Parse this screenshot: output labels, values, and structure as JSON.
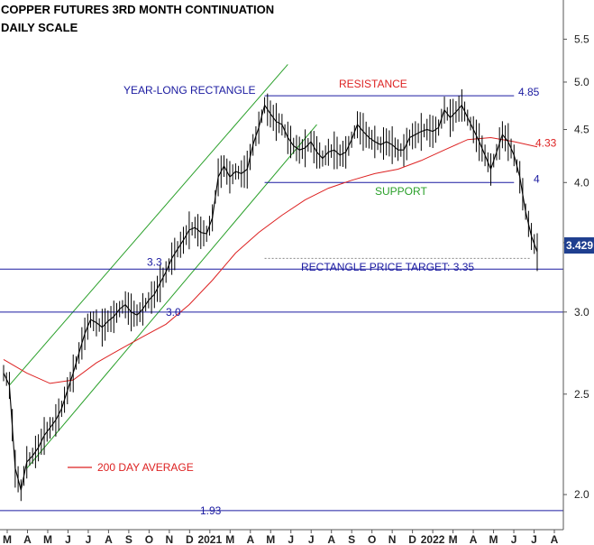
{
  "chart_data": {
    "type": "line",
    "title": "COPPER FUTURES 3RD MONTH CONTINUATION",
    "subtitle": "DAILY SCALE",
    "y_scale": "log",
    "ylim": [
      1.85,
      6.0
    ],
    "y_ticks": [
      {
        "value": 2.0,
        "label": "2.0"
      },
      {
        "value": 2.5,
        "label": "2.5"
      },
      {
        "value": 3.0,
        "label": "3.0"
      },
      {
        "value": 3.5,
        "label": "3.5"
      },
      {
        "value": 4.0,
        "label": "4.0"
      },
      {
        "value": 4.5,
        "label": "4.5"
      },
      {
        "value": 5.0,
        "label": "5.0"
      },
      {
        "value": 5.5,
        "label": "5.5"
      }
    ],
    "x_ticks": [
      "M",
      "A",
      "M",
      "J",
      "J",
      "A",
      "S",
      "O",
      "N",
      "D",
      "2021",
      "M",
      "A",
      "M",
      "J",
      "J",
      "A",
      "S",
      "O",
      "N",
      "D",
      "2022",
      "M",
      "A",
      "M",
      "J",
      "J",
      "A"
    ],
    "last_price": "3.429",
    "series": [
      {
        "name": "Price",
        "color": "#000000",
        "points": [
          [
            0,
            2.62
          ],
          [
            1,
            2.55
          ],
          [
            2,
            2.12
          ],
          [
            3,
            2.02
          ],
          [
            4,
            2.15
          ],
          [
            5,
            2.18
          ],
          [
            6,
            2.22
          ],
          [
            7,
            2.28
          ],
          [
            8,
            2.32
          ],
          [
            9,
            2.36
          ],
          [
            10,
            2.42
          ],
          [
            11,
            2.52
          ],
          [
            12,
            2.62
          ],
          [
            13,
            2.74
          ],
          [
            14,
            2.86
          ],
          [
            15,
            2.95
          ],
          [
            16,
            2.93
          ],
          [
            17,
            2.9
          ],
          [
            18,
            2.94
          ],
          [
            19,
            2.97
          ],
          [
            20,
            3.02
          ],
          [
            21,
            3.05
          ],
          [
            22,
            3.0
          ],
          [
            23,
            2.98
          ],
          [
            24,
            3.02
          ],
          [
            25,
            3.08
          ],
          [
            26,
            3.12
          ],
          [
            27,
            3.2
          ],
          [
            28,
            3.28
          ],
          [
            29,
            3.38
          ],
          [
            30,
            3.45
          ],
          [
            31,
            3.52
          ],
          [
            32,
            3.6
          ],
          [
            33,
            3.62
          ],
          [
            34,
            3.58
          ],
          [
            35,
            3.57
          ],
          [
            36,
            3.7
          ],
          [
            37,
            4.05
          ],
          [
            38,
            4.15
          ],
          [
            39,
            4.05
          ],
          [
            40,
            4.1
          ],
          [
            41,
            4.08
          ],
          [
            42,
            4.12
          ],
          [
            43,
            4.35
          ],
          [
            44,
            4.52
          ],
          [
            45,
            4.75
          ],
          [
            46,
            4.66
          ],
          [
            47,
            4.58
          ],
          [
            48,
            4.55
          ],
          [
            49,
            4.42
          ],
          [
            50,
            4.34
          ],
          [
            51,
            4.3
          ],
          [
            52,
            4.32
          ],
          [
            53,
            4.38
          ],
          [
            54,
            4.28
          ],
          [
            55,
            4.22
          ],
          [
            56,
            4.28
          ],
          [
            57,
            4.3
          ],
          [
            58,
            4.25
          ],
          [
            59,
            4.28
          ],
          [
            60,
            4.4
          ],
          [
            61,
            4.55
          ],
          [
            62,
            4.48
          ],
          [
            63,
            4.42
          ],
          [
            64,
            4.38
          ],
          [
            65,
            4.35
          ],
          [
            66,
            4.38
          ],
          [
            67,
            4.35
          ],
          [
            68,
            4.3
          ],
          [
            69,
            4.3
          ],
          [
            70,
            4.42
          ],
          [
            71,
            4.45
          ],
          [
            72,
            4.48
          ],
          [
            73,
            4.5
          ],
          [
            74,
            4.48
          ],
          [
            75,
            4.52
          ],
          [
            76,
            4.7
          ],
          [
            77,
            4.62
          ],
          [
            78,
            4.68
          ],
          [
            79,
            4.75
          ],
          [
            80,
            4.62
          ],
          [
            81,
            4.5
          ],
          [
            82,
            4.38
          ],
          [
            83,
            4.25
          ],
          [
            84,
            4.12
          ],
          [
            85,
            4.28
          ],
          [
            86,
            4.45
          ],
          [
            87,
            4.38
          ],
          [
            88,
            4.25
          ],
          [
            89,
            4.05
          ],
          [
            90,
            3.75
          ],
          [
            91,
            3.55
          ],
          [
            92,
            3.43
          ]
        ]
      },
      {
        "name": "200 DAY AVERAGE",
        "color": "#dd2222",
        "points": [
          [
            0,
            2.7
          ],
          [
            4,
            2.62
          ],
          [
            8,
            2.56
          ],
          [
            12,
            2.58
          ],
          [
            16,
            2.68
          ],
          [
            20,
            2.76
          ],
          [
            24,
            2.84
          ],
          [
            28,
            2.92
          ],
          [
            32,
            3.05
          ],
          [
            36,
            3.22
          ],
          [
            40,
            3.42
          ],
          [
            44,
            3.58
          ],
          [
            48,
            3.72
          ],
          [
            52,
            3.85
          ],
          [
            56,
            3.95
          ],
          [
            60,
            4.02
          ],
          [
            64,
            4.08
          ],
          [
            68,
            4.12
          ],
          [
            72,
            4.2
          ],
          [
            76,
            4.3
          ],
          [
            80,
            4.4
          ],
          [
            84,
            4.42
          ],
          [
            88,
            4.38
          ],
          [
            92,
            4.33
          ]
        ]
      }
    ],
    "levels": [
      {
        "value": 4.85,
        "label": "4.85",
        "color": "#1a1aa0"
      },
      {
        "value": 4.33,
        "label": "4.33",
        "color": "#dd2222"
      },
      {
        "value": 4.0,
        "label": "4",
        "color": "#1a1aa0"
      },
      {
        "value": 3.3,
        "label": "3.3",
        "color": "#1a1aa0"
      },
      {
        "value": 3.0,
        "label": "3.0",
        "color": "#1a1aa0"
      },
      {
        "value": 1.93,
        "label": "1.93",
        "color": "#1a1aa0"
      }
    ],
    "annotations": {
      "rectangle": "YEAR-LONG RECTANGLE",
      "resistance": "RESISTANCE",
      "support": "SUPPORT",
      "target": "RECTANGLE PRICE TARGET: 3.35",
      "legend_ma": "200 DAY AVERAGE"
    },
    "colors": {
      "annotation_blue": "#1a1aa0",
      "ma_red": "#dd2222",
      "channel_green": "#2aa02a",
      "price_tag": "#1f3f8f"
    }
  }
}
